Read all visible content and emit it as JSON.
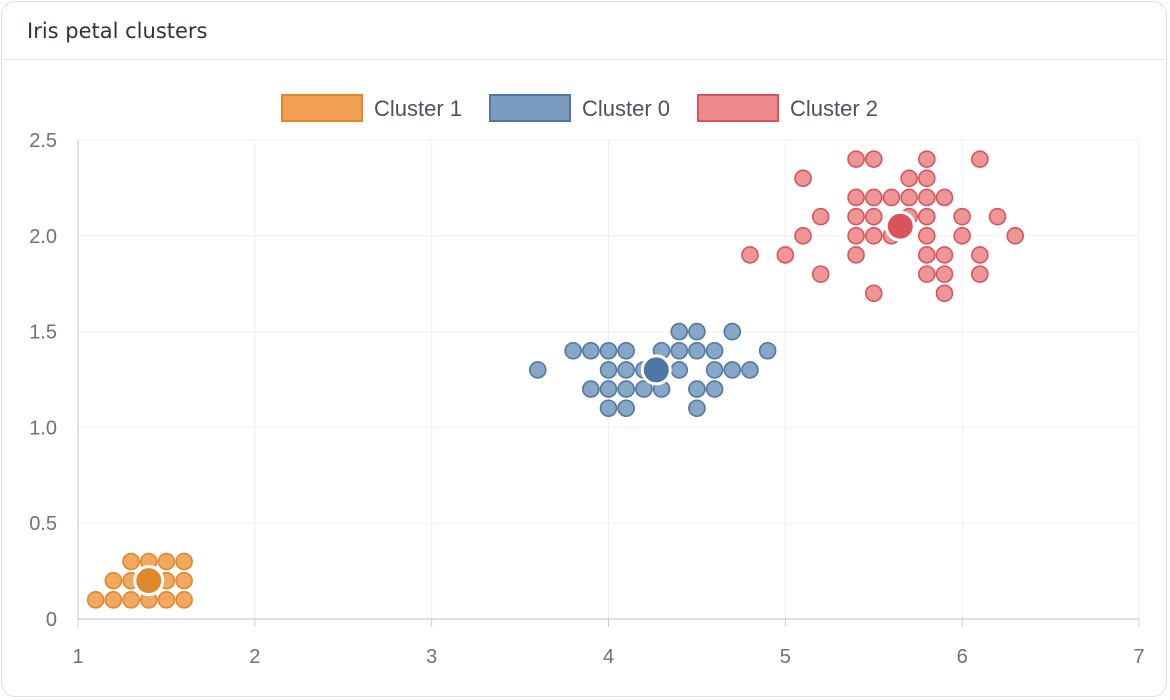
{
  "card": {
    "title": "Iris petal clusters"
  },
  "colors": {
    "cluster1_fill": "#f0a050",
    "cluster1_stroke": "#e0882a",
    "cluster0_fill": "#7b9cc0",
    "cluster0_stroke": "#4e76a6",
    "cluster2_fill": "#ec8a8c",
    "cluster2_stroke": "#d9545a",
    "grid": "#eeeff1",
    "axis": "#c8ccd2"
  },
  "chart_data": {
    "type": "scatter",
    "title": "",
    "xlabel": "",
    "ylabel": "",
    "xlim": [
      1,
      7
    ],
    "ylim": [
      0,
      2.5
    ],
    "x_ticks": [
      "1",
      "2",
      "3",
      "4",
      "5",
      "6",
      "7"
    ],
    "y_ticks": [
      "0",
      "0.5",
      "1.0",
      "1.5",
      "2.0",
      "2.5"
    ],
    "grid": true,
    "legend_position": "top",
    "series": [
      {
        "name": "Cluster 1",
        "centroid": [
          1.4,
          0.2
        ],
        "points": [
          [
            1.1,
            0.1
          ],
          [
            1.2,
            0.1
          ],
          [
            1.3,
            0.1
          ],
          [
            1.4,
            0.1
          ],
          [
            1.5,
            0.1
          ],
          [
            1.6,
            0.1
          ],
          [
            1.2,
            0.2
          ],
          [
            1.3,
            0.2
          ],
          [
            1.4,
            0.2
          ],
          [
            1.5,
            0.2
          ],
          [
            1.6,
            0.2
          ],
          [
            1.3,
            0.3
          ],
          [
            1.4,
            0.3
          ],
          [
            1.5,
            0.3
          ],
          [
            1.6,
            0.3
          ]
        ]
      },
      {
        "name": "Cluster 0",
        "centroid": [
          4.27,
          1.3
        ],
        "points": [
          [
            4.0,
            1.1
          ],
          [
            4.1,
            1.1
          ],
          [
            4.5,
            1.1
          ],
          [
            3.9,
            1.2
          ],
          [
            4.0,
            1.2
          ],
          [
            4.1,
            1.2
          ],
          [
            4.2,
            1.2
          ],
          [
            4.3,
            1.2
          ],
          [
            4.5,
            1.2
          ],
          [
            4.6,
            1.2
          ],
          [
            3.6,
            1.3
          ],
          [
            4.0,
            1.3
          ],
          [
            4.1,
            1.3
          ],
          [
            4.2,
            1.3
          ],
          [
            4.4,
            1.3
          ],
          [
            4.6,
            1.3
          ],
          [
            4.7,
            1.3
          ],
          [
            4.8,
            1.3
          ],
          [
            3.8,
            1.4
          ],
          [
            3.9,
            1.4
          ],
          [
            4.0,
            1.4
          ],
          [
            4.1,
            1.4
          ],
          [
            4.3,
            1.4
          ],
          [
            4.4,
            1.4
          ],
          [
            4.5,
            1.4
          ],
          [
            4.6,
            1.4
          ],
          [
            4.9,
            1.4
          ],
          [
            4.4,
            1.5
          ],
          [
            4.5,
            1.5
          ],
          [
            4.7,
            1.5
          ]
        ]
      },
      {
        "name": "Cluster 2",
        "centroid": [
          5.65,
          2.05
        ],
        "points": [
          [
            5.5,
            1.7
          ],
          [
            5.9,
            1.7
          ],
          [
            5.2,
            1.8
          ],
          [
            5.8,
            1.8
          ],
          [
            5.9,
            1.8
          ],
          [
            6.1,
            1.8
          ],
          [
            4.8,
            1.9
          ],
          [
            5.0,
            1.9
          ],
          [
            5.4,
            1.9
          ],
          [
            5.8,
            1.9
          ],
          [
            5.9,
            1.9
          ],
          [
            6.1,
            1.9
          ],
          [
            5.1,
            2.0
          ],
          [
            5.4,
            2.0
          ],
          [
            5.5,
            2.0
          ],
          [
            5.6,
            2.0
          ],
          [
            5.8,
            2.0
          ],
          [
            6.0,
            2.0
          ],
          [
            6.3,
            2.0
          ],
          [
            5.2,
            2.1
          ],
          [
            5.4,
            2.1
          ],
          [
            5.5,
            2.1
          ],
          [
            5.7,
            2.1
          ],
          [
            5.8,
            2.1
          ],
          [
            6.0,
            2.1
          ],
          [
            6.2,
            2.1
          ],
          [
            5.4,
            2.2
          ],
          [
            5.5,
            2.2
          ],
          [
            5.6,
            2.2
          ],
          [
            5.7,
            2.2
          ],
          [
            5.8,
            2.2
          ],
          [
            5.9,
            2.2
          ],
          [
            5.1,
            2.3
          ],
          [
            5.7,
            2.3
          ],
          [
            5.8,
            2.3
          ],
          [
            5.4,
            2.4
          ],
          [
            5.5,
            2.4
          ],
          [
            5.8,
            2.4
          ],
          [
            6.1,
            2.4
          ]
        ]
      }
    ]
  }
}
